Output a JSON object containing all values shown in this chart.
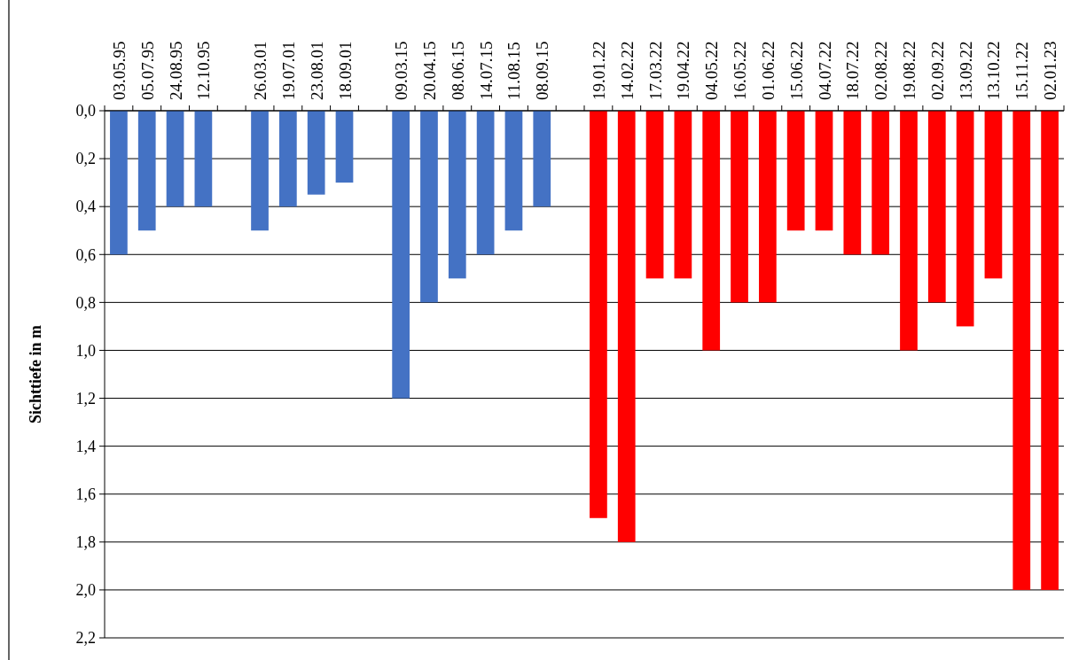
{
  "chart_data": {
    "type": "bar",
    "ylabel": "Sichttiefe in m",
    "categories": [
      "03.05.95",
      "05.07.95",
      "24.08.95",
      "12.10.95",
      null,
      "26.03.01",
      "19.07.01",
      "23.08.01",
      "18.09.01",
      null,
      "09.03.15",
      "20.04.15",
      "08.06.15",
      "14.07.15",
      "11.08.15",
      "08.09.15",
      null,
      "19.01.22",
      "14.02.22",
      "17.03.22",
      "19.04.22",
      "04.05.22",
      "16.05.22",
      "01.06.22",
      "15.06.22",
      "04.07.22",
      "18.07.22",
      "02.08.22",
      "19.08.22",
      "02.09.22",
      "13.09.22",
      "13.10.22",
      "15.11.22",
      "02.01.23"
    ],
    "series": [
      {
        "color": "#4472c4",
        "values": [
          0.6,
          0.5,
          0.4,
          0.4,
          null,
          0.5,
          0.4,
          0.35,
          0.3,
          null,
          1.2,
          0.8,
          0.7,
          0.6,
          0.5,
          0.4,
          null,
          null,
          null,
          null,
          null,
          null,
          null,
          null,
          null,
          null,
          null,
          null,
          null,
          null,
          null,
          null,
          null,
          null
        ]
      },
      {
        "color": "#ff0000",
        "values": [
          null,
          null,
          null,
          null,
          null,
          null,
          null,
          null,
          null,
          null,
          null,
          null,
          null,
          null,
          null,
          null,
          null,
          1.7,
          1.8,
          0.7,
          0.7,
          1.0,
          0.8,
          0.8,
          0.5,
          0.5,
          0.6,
          0.6,
          1.0,
          0.8,
          0.9,
          0.7,
          2.0,
          2.0
        ]
      }
    ],
    "ylim": [
      2.2,
      0
    ],
    "yticks": [
      {
        "value": 0,
        "label": "0,0"
      },
      {
        "value": 0.2,
        "label": "0,2"
      },
      {
        "value": 0.4,
        "label": "0,4"
      },
      {
        "value": 0.6,
        "label": "0,6"
      },
      {
        "value": 0.8,
        "label": "0,8"
      },
      {
        "value": 1.0,
        "label": "1,0"
      },
      {
        "value": 1.2,
        "label": "1,2"
      },
      {
        "value": 1.4,
        "label": "1,4"
      },
      {
        "value": 1.6,
        "label": "1,6"
      },
      {
        "value": 1.8,
        "label": "1,8"
      },
      {
        "value": 2.0,
        "label": "2,0"
      },
      {
        "value": 2.2,
        "label": "2,2"
      }
    ],
    "grid": "y"
  }
}
